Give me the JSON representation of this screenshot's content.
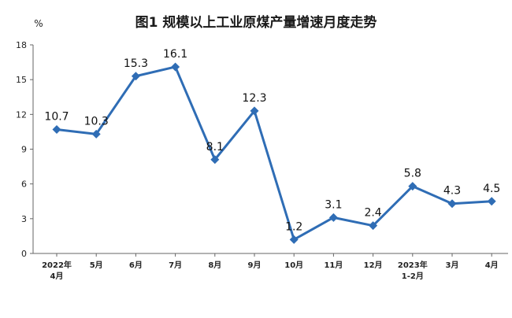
{
  "chart_data": {
    "type": "line",
    "title": "图1  规模以上工业原煤产量增速月度走势",
    "unit": "%",
    "ylim": [
      0,
      18
    ],
    "yticks": [
      0,
      3,
      6,
      9,
      12,
      15,
      18
    ],
    "categories": [
      [
        "2022年",
        "4月"
      ],
      [
        "5月"
      ],
      [
        "6月"
      ],
      [
        "7月"
      ],
      [
        "8月"
      ],
      [
        "9月"
      ],
      [
        "10月"
      ],
      [
        "11月"
      ],
      [
        "12月"
      ],
      [
        "2023年",
        "1-2月"
      ],
      [
        "3月"
      ],
      [
        "4月"
      ]
    ],
    "series": [
      {
        "values": [
          10.7,
          10.3,
          15.3,
          16.1,
          8.1,
          12.3,
          1.2,
          3.1,
          2.4,
          5.8,
          4.3,
          4.5
        ],
        "labels": [
          "10.7",
          "10.3",
          "15.3",
          "16.1",
          "8.1",
          "12.3",
          "1.2",
          "3.1",
          "2.4",
          "5.8",
          "4.3",
          "4.5"
        ],
        "color": "#2f6db5"
      }
    ],
    "grid": false,
    "legend": "none"
  }
}
